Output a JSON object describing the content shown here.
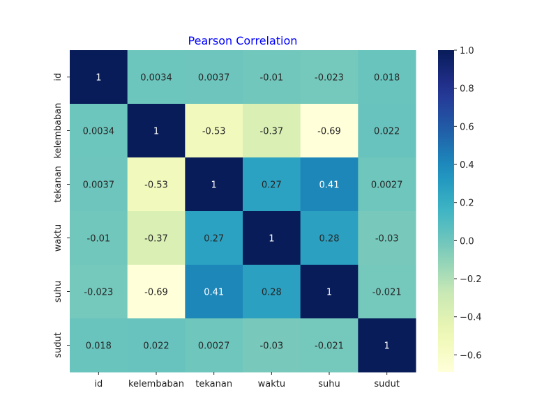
{
  "chart_data": {
    "type": "heatmap",
    "title": "Pearson Correlation",
    "title_color": "#0000ff",
    "xlabel": "",
    "ylabel": "",
    "x_categories": [
      "id",
      "kelembaban",
      "tekanan",
      "waktu",
      "suhu",
      "sudut"
    ],
    "y_categories": [
      "id",
      "kelembaban",
      "tekanan",
      "waktu",
      "suhu",
      "sudut"
    ],
    "values": [
      [
        1,
        0.0034,
        0.0037,
        -0.01,
        -0.023,
        0.018
      ],
      [
        0.0034,
        1,
        -0.53,
        -0.37,
        -0.69,
        0.022
      ],
      [
        0.0037,
        -0.53,
        1,
        0.27,
        0.41,
        0.0027
      ],
      [
        -0.01,
        -0.37,
        0.27,
        1,
        0.28,
        -0.03
      ],
      [
        -0.023,
        -0.69,
        0.41,
        0.28,
        1,
        -0.021
      ],
      [
        0.018,
        0.022,
        0.0027,
        -0.03,
        -0.021,
        1
      ]
    ],
    "value_labels": [
      [
        "1",
        "0.0034",
        "0.0037",
        "-0.01",
        "-0.023",
        "0.018"
      ],
      [
        "0.0034",
        "1",
        "-0.53",
        "-0.37",
        "-0.69",
        "0.022"
      ],
      [
        "0.0037",
        "-0.53",
        "1",
        "0.27",
        "0.41",
        "0.0027"
      ],
      [
        "-0.01",
        "-0.37",
        "0.27",
        "1",
        "0.28",
        "-0.03"
      ],
      [
        "-0.023",
        "-0.69",
        "0.41",
        "0.28",
        "1",
        "-0.021"
      ],
      [
        "0.018",
        "0.022",
        "0.0027",
        "-0.03",
        "-0.021",
        "1"
      ]
    ],
    "colormap": "YlGnBu",
    "vmin": -0.69,
    "vmax": 1.0,
    "colorbar": {
      "ticks": [
        -0.6,
        -0.4,
        -0.2,
        0.0,
        0.2,
        0.4,
        0.6,
        0.8,
        1.0
      ],
      "tick_labels": [
        "−0.6",
        "−0.4",
        "−0.2",
        "0.0",
        "0.2",
        "0.4",
        "0.6",
        "0.8",
        "1.0"
      ]
    },
    "annotated": true,
    "grid": false,
    "legend": "colorbar-right"
  }
}
